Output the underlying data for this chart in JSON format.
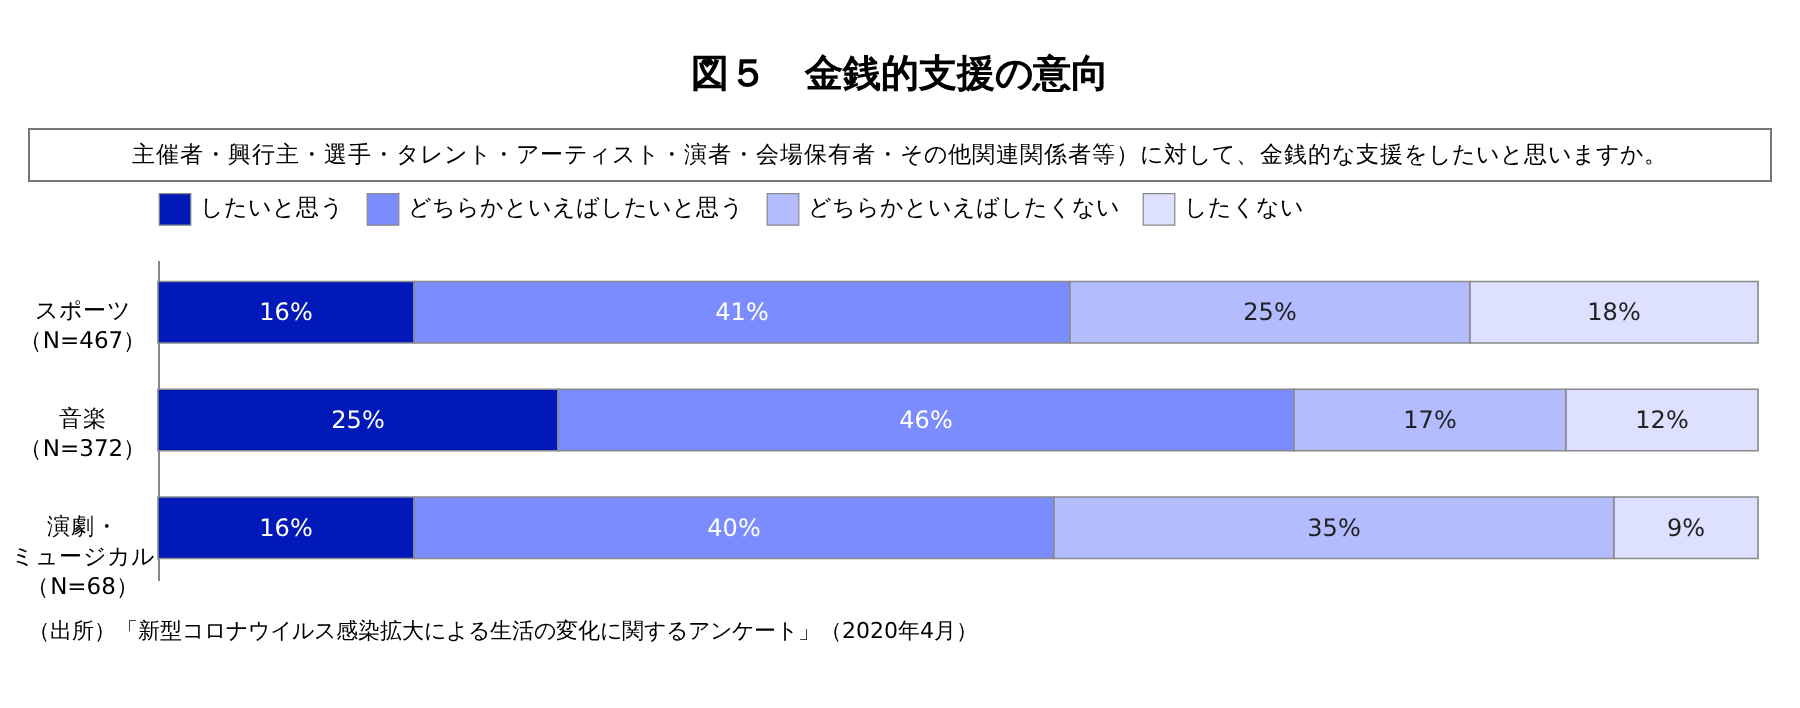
{
  "chart_data": {
    "type": "bar",
    "orientation": "horizontal",
    "stacked": true,
    "title": "図５　金銭的支援の意向",
    "subtitle": "主催者・興行主・選手・タレント・アーティスト・演者・会場保有者・その他関連関係者等）に対して、金銭的な支援をしたいと思いますか。",
    "categories": [
      "スポーツ（N=467）",
      "音楽（N=372）",
      "演劇・ミュージカル（N=68）"
    ],
    "series": [
      {
        "name": "したいと思う",
        "color": "#0019b8",
        "values": [
          16,
          25,
          16
        ],
        "value_labels": [
          "16%",
          "25%",
          "16%"
        ]
      },
      {
        "name": "どちらかといえばしたいと思う",
        "color": "#7b8cff",
        "values": [
          41,
          46,
          40
        ],
        "value_labels": [
          "41%",
          "46%",
          "40%"
        ]
      },
      {
        "name": "どちらかといえばしたくない",
        "color": "#b3bcff",
        "values": [
          25,
          17,
          35
        ],
        "value_labels": [
          "25%",
          "17%",
          "35%"
        ]
      },
      {
        "name": "したくない",
        "color": "#dde0ff",
        "values": [
          18,
          12,
          9
        ],
        "value_labels": [
          "18%",
          "12%",
          "9%"
        ]
      }
    ],
    "xlim": [
      0,
      100
    ],
    "legend": "top left",
    "grid": false,
    "annotations": [
      "（出所）「新型コロナウイルス感染拡大による生活の変化に関するアンケート」（2020年4月）"
    ]
  }
}
